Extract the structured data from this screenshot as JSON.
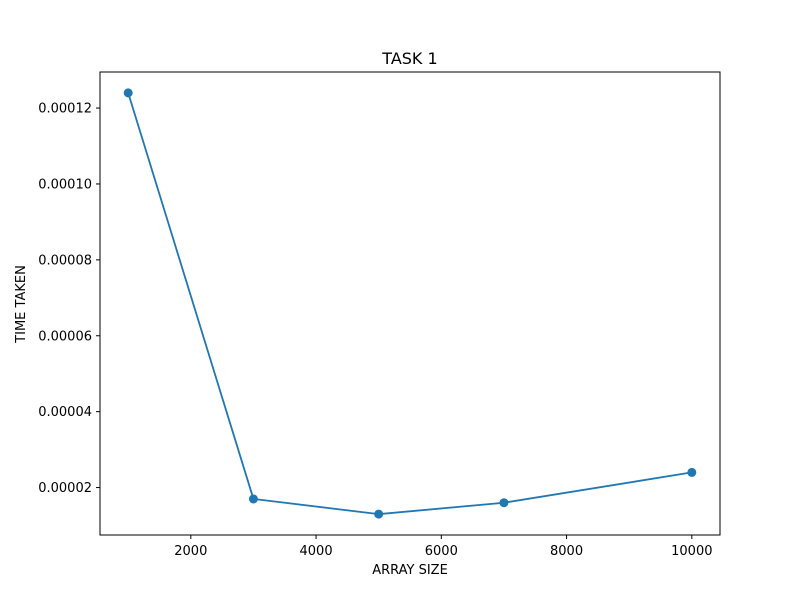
{
  "chart_data": {
    "type": "line",
    "title": "TASK 1",
    "xlabel": "ARRAY SIZE",
    "ylabel": "TIME TAKEN",
    "x": [
      1000,
      3000,
      5000,
      7000,
      10000
    ],
    "series": [
      {
        "values": [
          0.000124,
          1.7e-05,
          1.3e-05,
          1.6e-05,
          2.4e-05
        ]
      }
    ],
    "xlim": [
      550,
      10450
    ],
    "ylim": [
      7.5e-06,
      0.0001295
    ],
    "xticks": [
      2000,
      4000,
      6000,
      8000,
      10000
    ],
    "xtick_labels": [
      "2000",
      "4000",
      "6000",
      "8000",
      "10000"
    ],
    "yticks": [
      2e-05,
      4e-05,
      6e-05,
      8e-05,
      0.0001,
      0.00012
    ],
    "ytick_labels": [
      "0.00002",
      "0.00004",
      "0.00006",
      "0.00008",
      "0.00010",
      "0.00012"
    ],
    "grid": false,
    "marker": "circle",
    "line_color": "#1f77b4"
  }
}
